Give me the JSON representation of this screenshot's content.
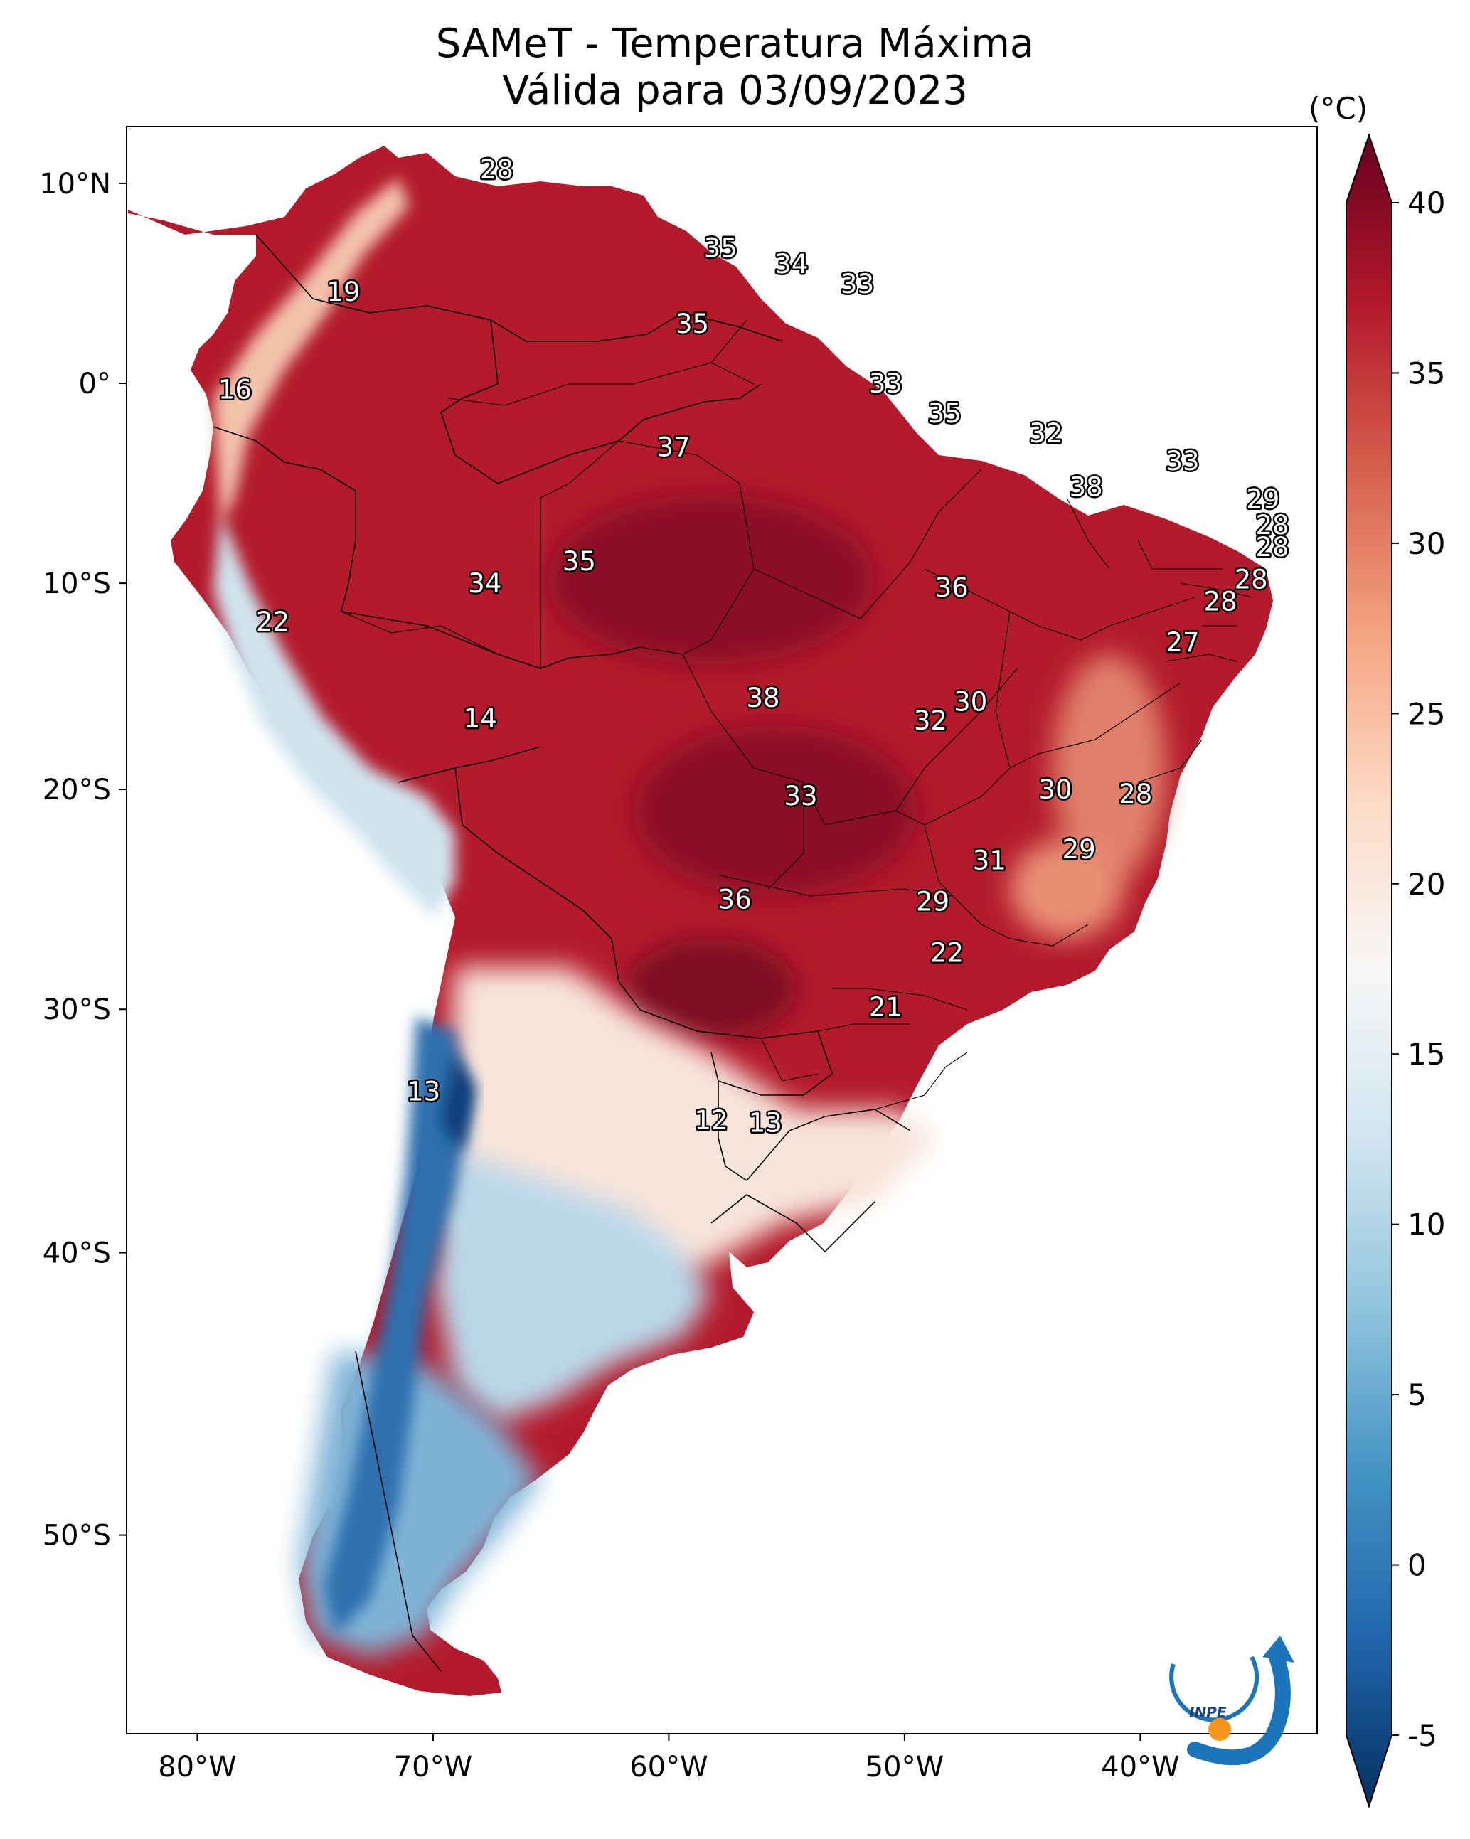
{
  "title": "SAMeT - Temperatura Máxima",
  "subtitle": "Válida para 03/09/2023",
  "chart_data": {
    "type": "heatmap",
    "title": "SAMeT - Temperatura Máxima",
    "subtitle": "Válida para 03/09/2023",
    "lon_range": [
      -83.0,
      -32.5
    ],
    "lat_range": [
      -56.0,
      12.8
    ],
    "lon_ticks": [
      "80°W",
      "70°W",
      "60°W",
      "50°W",
      "40°W"
    ],
    "lon_tick_values": [
      -80,
      -70,
      -60,
      -50,
      -40
    ],
    "lat_ticks": [
      "10°N",
      "0°",
      "10°S",
      "20°S",
      "30°S",
      "40°S",
      "50°S"
    ],
    "lat_tick_values": [
      10,
      0,
      -10,
      -20,
      -30,
      -40,
      -50
    ],
    "colorbar": {
      "units": "(°C)",
      "min": -5,
      "max": 40,
      "extend": "both",
      "ticks": [
        "-5",
        "0",
        "5",
        "10",
        "15",
        "20",
        "25",
        "30",
        "35",
        "40"
      ],
      "tick_values": [
        -5,
        0,
        5,
        10,
        15,
        20,
        25,
        30,
        35,
        40
      ],
      "colormap": "RdBu_r",
      "colors": [
        "#053061",
        "#2166ac",
        "#4393c3",
        "#92c5de",
        "#d1e5f0",
        "#f7f7f7",
        "#fddbc7",
        "#f4a582",
        "#d6604d",
        "#b2182b",
        "#67001f"
      ]
    },
    "labels": [
      {
        "text": "28",
        "lon": -67.3,
        "lat": 10.7
      },
      {
        "text": "35",
        "lon": -57.8,
        "lat": 6.8
      },
      {
        "text": "34",
        "lon": -54.8,
        "lat": 6.0
      },
      {
        "text": "33",
        "lon": -52.0,
        "lat": 5.0
      },
      {
        "text": "19",
        "lon": -73.8,
        "lat": 4.6
      },
      {
        "text": "35",
        "lon": -59.0,
        "lat": 3.0
      },
      {
        "text": "16",
        "lon": -78.4,
        "lat": -0.3
      },
      {
        "text": "33",
        "lon": -50.8,
        "lat": 0.0
      },
      {
        "text": "35",
        "lon": -48.3,
        "lat": -1.5
      },
      {
        "text": "32",
        "lon": -44.0,
        "lat": -2.5
      },
      {
        "text": "37",
        "lon": -59.8,
        "lat": -3.2
      },
      {
        "text": "33",
        "lon": -38.2,
        "lat": -3.9
      },
      {
        "text": "38",
        "lon": -42.3,
        "lat": -5.2
      },
      {
        "text": "29",
        "lon": -34.8,
        "lat": -5.8
      },
      {
        "text": "28",
        "lon": -34.4,
        "lat": -7.1
      },
      {
        "text": "28",
        "lon": -34.4,
        "lat": -8.2
      },
      {
        "text": "35",
        "lon": -63.8,
        "lat": -8.9
      },
      {
        "text": "34",
        "lon": -67.8,
        "lat": -10.0
      },
      {
        "text": "36",
        "lon": -48.0,
        "lat": -10.2
      },
      {
        "text": "28",
        "lon": -35.3,
        "lat": -9.8
      },
      {
        "text": "28",
        "lon": -36.6,
        "lat": -10.9
      },
      {
        "text": "22",
        "lon": -76.8,
        "lat": -11.9
      },
      {
        "text": "27",
        "lon": -38.2,
        "lat": -12.9
      },
      {
        "text": "38",
        "lon": -56.0,
        "lat": -15.6
      },
      {
        "text": "30",
        "lon": -47.2,
        "lat": -15.8
      },
      {
        "text": "32",
        "lon": -48.9,
        "lat": -16.7
      },
      {
        "text": "14",
        "lon": -68.0,
        "lat": -16.6
      },
      {
        "text": "30",
        "lon": -43.6,
        "lat": -20.0
      },
      {
        "text": "28",
        "lon": -40.2,
        "lat": -20.2
      },
      {
        "text": "33",
        "lon": -54.4,
        "lat": -20.3
      },
      {
        "text": "29",
        "lon": -42.6,
        "lat": -22.8
      },
      {
        "text": "31",
        "lon": -46.4,
        "lat": -23.3
      },
      {
        "text": "36",
        "lon": -57.2,
        "lat": -25.1
      },
      {
        "text": "29",
        "lon": -48.8,
        "lat": -25.2
      },
      {
        "text": "22",
        "lon": -48.2,
        "lat": -27.5
      },
      {
        "text": "21",
        "lon": -50.8,
        "lat": -29.9
      },
      {
        "text": "13",
        "lon": -70.4,
        "lat": -33.5
      },
      {
        "text": "12",
        "lon": -58.2,
        "lat": -34.7
      },
      {
        "text": "13",
        "lon": -55.9,
        "lat": -34.8
      }
    ],
    "logo_text": "INPE"
  }
}
